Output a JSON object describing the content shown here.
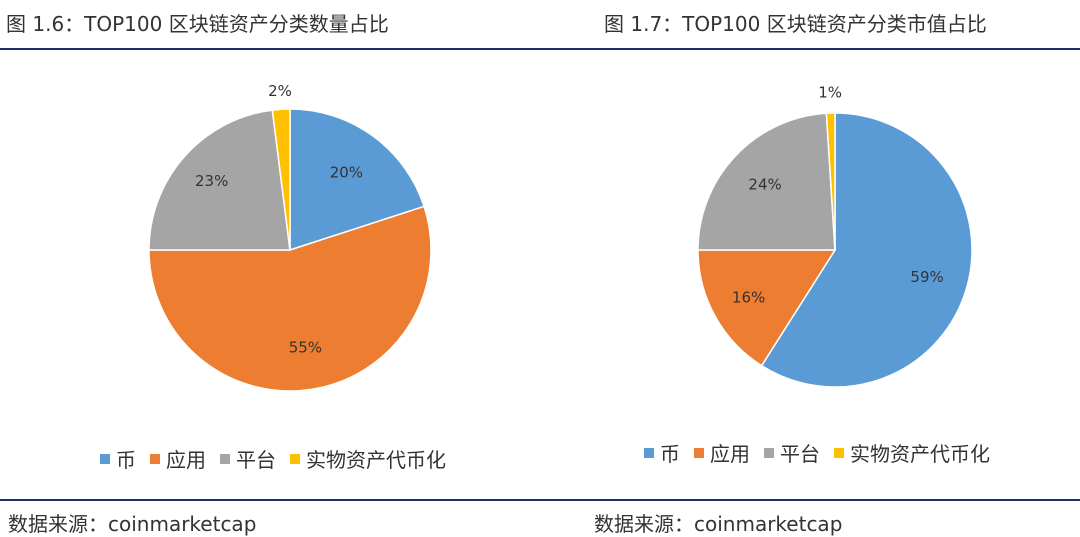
{
  "figures": [
    {
      "title": "图 1.6：TOP100 区块链资产分类数量占比",
      "source": "数据来源：coinmarketcap"
    },
    {
      "title": "图 1.7：TOP100 区块链资产分类市值占比",
      "source": "数据来源：coinmarketcap"
    }
  ],
  "chart_data": [
    {
      "type": "pie",
      "title": "图 1.6：TOP100 区块链资产分类数量占比",
      "categories": [
        "币",
        "应用",
        "平台",
        "实物资产代币化"
      ],
      "values": [
        20,
        55,
        23,
        2
      ],
      "labels": [
        "20%",
        "55%",
        "23%",
        "2%"
      ],
      "colors": [
        "#5b9bd5",
        "#ed7d31",
        "#a5a5a5",
        "#ffc000"
      ],
      "legend": "bottom",
      "start": "top, clockwise"
    },
    {
      "type": "pie",
      "title": "图 1.7：TOP100 区块链资产分类市值占比",
      "categories": [
        "币",
        "应用",
        "平台",
        "实物资产代币化"
      ],
      "values": [
        59,
        16,
        24,
        1
      ],
      "labels": [
        "59%",
        "16%",
        "24%",
        "1%"
      ],
      "colors": [
        "#5b9bd5",
        "#ed7d31",
        "#a5a5a5",
        "#ffc000"
      ],
      "legend": "bottom",
      "start": "top, clockwise"
    }
  ]
}
